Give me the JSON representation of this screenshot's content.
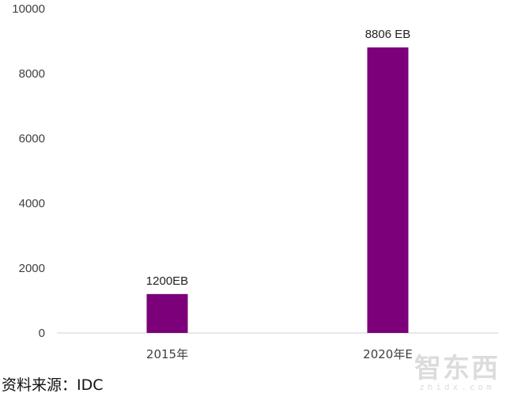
{
  "chart_data": {
    "type": "bar",
    "categories": [
      "2015年",
      "2020年E"
    ],
    "values": [
      1200,
      8806
    ],
    "data_labels": [
      "1200EB",
      "8806 EB"
    ],
    "ylim": [
      0,
      10000
    ],
    "yticks": [
      0,
      2000,
      4000,
      6000,
      8000,
      10000
    ],
    "bar_color": "#7B0079",
    "grid": false,
    "legend": "none"
  },
  "source_text": "资料来源：IDC",
  "watermark": {
    "logo": "智东西",
    "url": "zhidx.com"
  }
}
